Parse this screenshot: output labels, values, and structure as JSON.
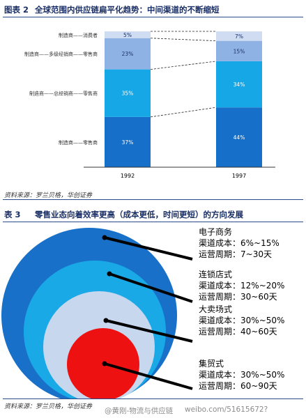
{
  "figure1": {
    "number": "图表 2",
    "title": "全球范围内供应链扁平化趋势：中间渠道的不断缩短",
    "source": "资料来源：罗兰贝格，华创证券"
  },
  "figure2": {
    "number": "表 3",
    "title": "零售业态向着效率更高（成本更低，时间更短）的方向发展",
    "source": "资料来源：罗兰贝格，华创证券"
  },
  "watermark": {
    "left": "@黄刚-物流与供应链",
    "right": "weibo.com/51615672?"
  },
  "colors": {
    "seg1": "#1670c9",
    "seg2": "#16a8e6",
    "seg3": "#8eb2e3",
    "seg4": "#cfdcf1",
    "outer_ring": "#1870c8",
    "ring2": "#19a9e6",
    "ring3": "#c7d7ee",
    "core": "#ee1111",
    "callout": "#000000",
    "heading": "#1a2f66"
  },
  "chart_data": [
    {
      "type": "bar",
      "stacked": true,
      "categories": [
        "1992",
        "1997"
      ],
      "series": [
        {
          "name": "制造商——零售商",
          "values": [
            37,
            44
          ],
          "labels": [
            "37%",
            "44%"
          ]
        },
        {
          "name": "制造商——总经销商——零售商",
          "values": [
            35,
            34
          ],
          "labels": [
            "35%",
            "34%"
          ]
        },
        {
          "name": "制造商——多级经销商——零售商",
          "values": [
            23,
            15
          ],
          "labels": [
            "23%",
            "15%"
          ]
        },
        {
          "name": "制造商——消费者",
          "values": [
            5,
            7
          ],
          "labels": [
            "5%",
            "7%"
          ]
        }
      ],
      "ylim": [
        0,
        100
      ],
      "legend": "left",
      "grid": false
    },
    {
      "type": "table",
      "categories": [
        {
          "name": "电子商务",
          "cost_label": "渠道成本：",
          "cost": "6%~15%",
          "cycle_label": "运营周期：",
          "cycle": "7~30天"
        },
        {
          "name": "连锁店式",
          "cost_label": "渠道成本：",
          "cost": "12%~20%",
          "cycle_label": "运营周期：",
          "cycle": "30~60天"
        },
        {
          "name": "大卖场式",
          "cost_label": "渠道成本：",
          "cost": "30%~50%",
          "cycle_label": "运营周期：",
          "cycle": "40~60天"
        },
        {
          "name": "集贸式",
          "cost_label": "渠道成本：",
          "cost": "30%~50%",
          "cycle_label": "运营周期：",
          "cycle": "60~90天"
        }
      ]
    }
  ]
}
